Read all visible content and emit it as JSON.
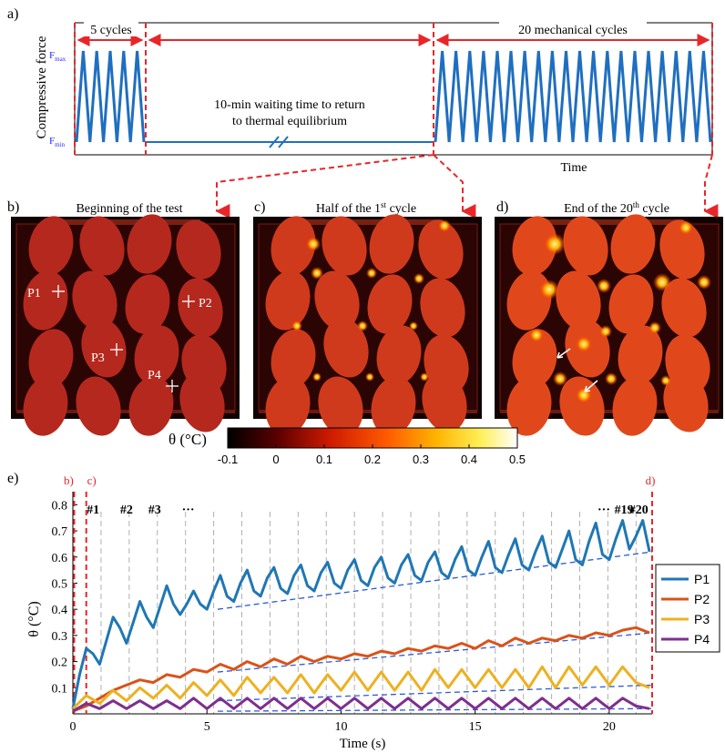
{
  "panel_letters": {
    "a": "a)",
    "b": "b)",
    "c": "c)",
    "d": "d)",
    "e": "e)"
  },
  "panel_a": {
    "ylabel": "Compressive force",
    "fmax": "F",
    "fmax_sub": "max",
    "fmin": "F",
    "fmin_sub": "min",
    "label_5cycles": "5 cycles",
    "label_20cycles": "20 mechanical cycles",
    "waiting_line1": "10-min waiting time to return",
    "waiting_line2": "to thermal equilibrium",
    "xlabel": "Time",
    "n_cycles_start": 5,
    "n_cycles_end": 20
  },
  "thermal_panels": {
    "b_title": "Beginning of the test",
    "c_title_pre": "Half of the 1",
    "c_title_sup": "st",
    "c_title_post": " cycle",
    "d_title_pre": "End of the 20",
    "d_title_sup": "th",
    "d_title_post": " cycle",
    "point_labels": [
      "P1",
      "P2",
      "P3",
      "P4"
    ]
  },
  "colorbar": {
    "label": "θ (°C)",
    "ticks": [
      "-0.1",
      "0",
      "0.1",
      "0.2",
      "0.3",
      "0.4",
      "0.5"
    ],
    "min": -0.1,
    "max": 0.5
  },
  "chart_data": {
    "type": "line",
    "xlabel": "Time (s)",
    "ylabel": "θ (°C)",
    "xlim": [
      0,
      21.6
    ],
    "ylim": [
      0,
      0.85
    ],
    "xticks": [
      "0",
      "5",
      "10",
      "15",
      "20"
    ],
    "yticks": [
      "0.1",
      "0.2",
      "0.3",
      "0.4",
      "0.5",
      "0.6",
      "0.7",
      "0.8"
    ],
    "cycle_labels": [
      "#1",
      "#2",
      "#3",
      "···",
      "···",
      "#19",
      "#20"
    ],
    "marker_labels": [
      "b)",
      "c)",
      "d)"
    ],
    "cycle_period": 1.05,
    "legend_position": "right",
    "series": [
      {
        "name": "P1",
        "color": "#1f77b4",
        "x": [
          0,
          0.25,
          0.5,
          0.75,
          1.0,
          1.25,
          1.5,
          1.75,
          2.0,
          2.25,
          2.5,
          2.75,
          3.0,
          3.25,
          3.5,
          3.75,
          4.0,
          4.25,
          4.5,
          4.75,
          5.0,
          5.25,
          5.5,
          5.75,
          6.0,
          6.25,
          6.5,
          6.75,
          7.0,
          7.25,
          7.5,
          7.75,
          8.0,
          8.25,
          8.5,
          8.75,
          9.0,
          9.25,
          9.5,
          9.75,
          10.0,
          10.25,
          10.5,
          10.75,
          11.0,
          11.25,
          11.5,
          11.75,
          12.0,
          12.25,
          12.5,
          12.75,
          13.0,
          13.25,
          13.5,
          13.75,
          14.0,
          14.25,
          14.5,
          14.75,
          15.0,
          15.25,
          15.5,
          15.75,
          16.0,
          16.25,
          16.5,
          16.75,
          17.0,
          17.25,
          17.5,
          17.75,
          18.0,
          18.25,
          18.5,
          18.75,
          19.0,
          19.25,
          19.5,
          19.75,
          20.0,
          20.25,
          20.5,
          20.75,
          21.0,
          21.25,
          21.5
        ],
        "values": [
          0.02,
          0.15,
          0.25,
          0.23,
          0.19,
          0.28,
          0.37,
          0.33,
          0.27,
          0.35,
          0.43,
          0.37,
          0.33,
          0.41,
          0.49,
          0.42,
          0.38,
          0.42,
          0.47,
          0.42,
          0.4,
          0.47,
          0.53,
          0.45,
          0.43,
          0.5,
          0.55,
          0.47,
          0.45,
          0.52,
          0.56,
          0.48,
          0.46,
          0.53,
          0.57,
          0.49,
          0.47,
          0.54,
          0.58,
          0.5,
          0.48,
          0.55,
          0.59,
          0.51,
          0.49,
          0.56,
          0.6,
          0.52,
          0.5,
          0.57,
          0.61,
          0.53,
          0.51,
          0.58,
          0.62,
          0.54,
          0.52,
          0.59,
          0.64,
          0.55,
          0.53,
          0.6,
          0.66,
          0.56,
          0.54,
          0.61,
          0.67,
          0.57,
          0.55,
          0.62,
          0.68,
          0.58,
          0.56,
          0.63,
          0.7,
          0.59,
          0.57,
          0.66,
          0.73,
          0.61,
          0.59,
          0.67,
          0.74,
          0.63,
          0.68,
          0.74,
          0.62
        ]
      },
      {
        "name": "P2",
        "color": "#d95319",
        "x": [
          0,
          0.5,
          1.0,
          1.5,
          2.0,
          2.5,
          3.0,
          3.5,
          4.0,
          4.5,
          5.0,
          5.5,
          6.0,
          6.5,
          7.0,
          7.5,
          8.0,
          8.5,
          9.0,
          9.5,
          10.0,
          10.5,
          11.0,
          11.5,
          12.0,
          12.5,
          13.0,
          13.5,
          14.0,
          14.5,
          15.0,
          15.5,
          16.0,
          16.5,
          17.0,
          17.5,
          18.0,
          18.5,
          19.0,
          19.5,
          20.0,
          20.5,
          21.0,
          21.5
        ],
        "values": [
          0.01,
          0.03,
          0.06,
          0.09,
          0.11,
          0.13,
          0.12,
          0.15,
          0.14,
          0.17,
          0.16,
          0.19,
          0.17,
          0.2,
          0.18,
          0.21,
          0.19,
          0.22,
          0.2,
          0.22,
          0.21,
          0.23,
          0.22,
          0.24,
          0.23,
          0.25,
          0.24,
          0.26,
          0.25,
          0.27,
          0.25,
          0.28,
          0.26,
          0.29,
          0.27,
          0.29,
          0.28,
          0.3,
          0.29,
          0.31,
          0.3,
          0.32,
          0.33,
          0.31
        ]
      },
      {
        "name": "P3",
        "color": "#edb120",
        "x": [
          0,
          0.5,
          1.0,
          1.5,
          2.0,
          2.5,
          3.0,
          3.5,
          4.0,
          4.5,
          5.0,
          5.5,
          6.0,
          6.5,
          7.0,
          7.5,
          8.0,
          8.5,
          9.0,
          9.5,
          10.0,
          10.5,
          11.0,
          11.5,
          12.0,
          12.5,
          13.0,
          13.5,
          14.0,
          14.5,
          15.0,
          15.5,
          16.0,
          16.5,
          17.0,
          17.5,
          18.0,
          18.5,
          19.0,
          19.5,
          20.0,
          20.5,
          21.0,
          21.5
        ],
        "values": [
          0.02,
          0.07,
          0.04,
          0.09,
          0.05,
          0.1,
          0.06,
          0.11,
          0.06,
          0.12,
          0.07,
          0.13,
          0.07,
          0.14,
          0.08,
          0.14,
          0.08,
          0.15,
          0.08,
          0.15,
          0.09,
          0.16,
          0.09,
          0.16,
          0.09,
          0.16,
          0.09,
          0.17,
          0.1,
          0.17,
          0.1,
          0.17,
          0.1,
          0.17,
          0.1,
          0.18,
          0.1,
          0.18,
          0.11,
          0.18,
          0.11,
          0.18,
          0.12,
          0.1
        ]
      },
      {
        "name": "P4",
        "color": "#7e2f8e",
        "x": [
          0,
          0.5,
          1.0,
          1.5,
          2.0,
          2.5,
          3.0,
          3.5,
          4.0,
          4.5,
          5.0,
          5.5,
          6.0,
          6.5,
          7.0,
          7.5,
          8.0,
          8.5,
          9.0,
          9.5,
          10.0,
          10.5,
          11.0,
          11.5,
          12.0,
          12.5,
          13.0,
          13.5,
          14.0,
          14.5,
          15.0,
          15.5,
          16.0,
          16.5,
          17.0,
          17.5,
          18.0,
          18.5,
          19.0,
          19.5,
          20.0,
          20.5,
          21.0,
          21.5
        ],
        "values": [
          0.01,
          0.04,
          0.02,
          0.05,
          0.02,
          0.05,
          0.02,
          0.05,
          0.02,
          0.06,
          0.02,
          0.06,
          0.02,
          0.06,
          0.02,
          0.06,
          0.02,
          0.06,
          0.02,
          0.06,
          0.02,
          0.06,
          0.02,
          0.06,
          0.02,
          0.06,
          0.02,
          0.06,
          0.02,
          0.06,
          0.02,
          0.06,
          0.02,
          0.06,
          0.02,
          0.06,
          0.02,
          0.06,
          0.02,
          0.06,
          0.02,
          0.06,
          0.03,
          0.02
        ]
      }
    ],
    "trend_lines": [
      {
        "of": "P1",
        "x": [
          5.4,
          21.6
        ],
        "values": [
          0.4,
          0.62
        ]
      },
      {
        "of": "P2",
        "x": [
          5.4,
          21.6
        ],
        "values": [
          0.16,
          0.31
        ]
      },
      {
        "of": "P3",
        "x": [
          5.4,
          21.6
        ],
        "values": [
          0.05,
          0.11
        ]
      },
      {
        "of": "P4",
        "x": [
          5.4,
          21.6
        ],
        "values": [
          0.01,
          0.02
        ]
      }
    ]
  }
}
